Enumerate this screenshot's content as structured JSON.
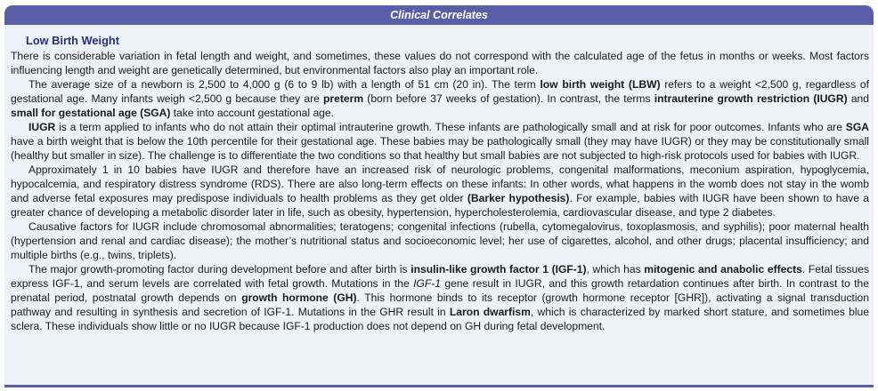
{
  "header": {
    "title": "Clinical Correlates"
  },
  "section": {
    "heading": "Low Birth Weight",
    "p1": "There is considerable variation in fetal length and weight, and sometimes, these values do not correspond with the calculated age of the fetus in months or weeks. Most factors influencing length and weight are genetically determined, but environmental factors also play an important role.",
    "p2": {
      "a": "The average size of a newborn is 2,500 to 4,000 g (6 to 9 lb) with a length of 51 cm (20 in). The term ",
      "b1": "low birth weight (LBW)",
      "c": " refers to a weight <2,500 g, regardless of gestational age. Many infants weigh <2,500 g because they are ",
      "b2": "preterm",
      "d": " (born before 37 weeks of gestation). In contrast, the terms ",
      "b3": "intrauterine growth restriction (IUGR)",
      "e": " and ",
      "b4": "small for gestational age (SGA)",
      "f": " take into account gestational age."
    },
    "p3": {
      "b1": "IUGR",
      "a": " is a term applied to infants who do not attain their optimal intrauterine growth. These infants are pathologically small and at risk for poor outcomes. Infants who are ",
      "b2": "SGA",
      "c": " have a birth weight that is below the 10th percentile for their gestational age. These babies may be pathologically small (they may have IUGR) or they may be constitutionally small (healthy but smaller in size). The challenge is to differentiate the two conditions so that healthy but small babies are not subjected to high-risk protocols used for babies with IUGR."
    },
    "p4": {
      "a": "Approximately 1 in 10 babies have IUGR and therefore have an increased risk of neurologic problems, congenital malformations, meconium aspiration, hypoglycemia, hypocalcemia, and respiratory distress syndrome (RDS). There are also long-term effects on these infants: In other words, what happens in the womb does not stay in the womb and adverse fetal exposures may predispose individuals to health problems as they get older ",
      "b1": "(Barker hypothesis)",
      "c": ". For example, babies with IUGR have been shown to have a greater chance of developing a metabolic disorder later in life, such as obesity, hypertension, hypercholesterolemia, cardiovascular disease, and type 2 diabetes."
    },
    "p5": "Causative factors for IUGR include chromosomal abnormalities; teratogens; congenital infections (rubella, cytomegalovirus, toxoplasmosis, and syphilis); poor maternal health (hypertension and renal and cardiac disease); the mother’s nutritional status and socioeconomic level; her use of cigarettes, alcohol, and other drugs; placental insufficiency; and multiple births (e.g., twins, triplets).",
    "p6": {
      "a": "The major growth-promoting factor during development before and after birth is ",
      "b1": "insulin-like growth factor 1 (IGF-1)",
      "c": ", which has ",
      "b2": "mitogenic and anabolic effects",
      "d": ". Fetal tissues express IGF-1, and serum levels are correlated with fetal growth. Mutations in the ",
      "i1": "IGF-1",
      "e": " gene result in IUGR, and this growth retardation continues after birth. In contrast to the prenatal period, postnatal growth depends on ",
      "b3": "growth hormone (GH)",
      "f": ". This hormone binds to its receptor (growth hormone receptor [GHR]), activating a signal transduction pathway and resulting in synthesis and secretion of IGF-1. Mutations in the GHR result in ",
      "b4": "Laron dwarfism",
      "g": ", which is characterized by marked short stature, and sometimes blue sclera. These individuals show little or no IUGR because IGF-1 production does not depend on GH during fetal development."
    }
  }
}
